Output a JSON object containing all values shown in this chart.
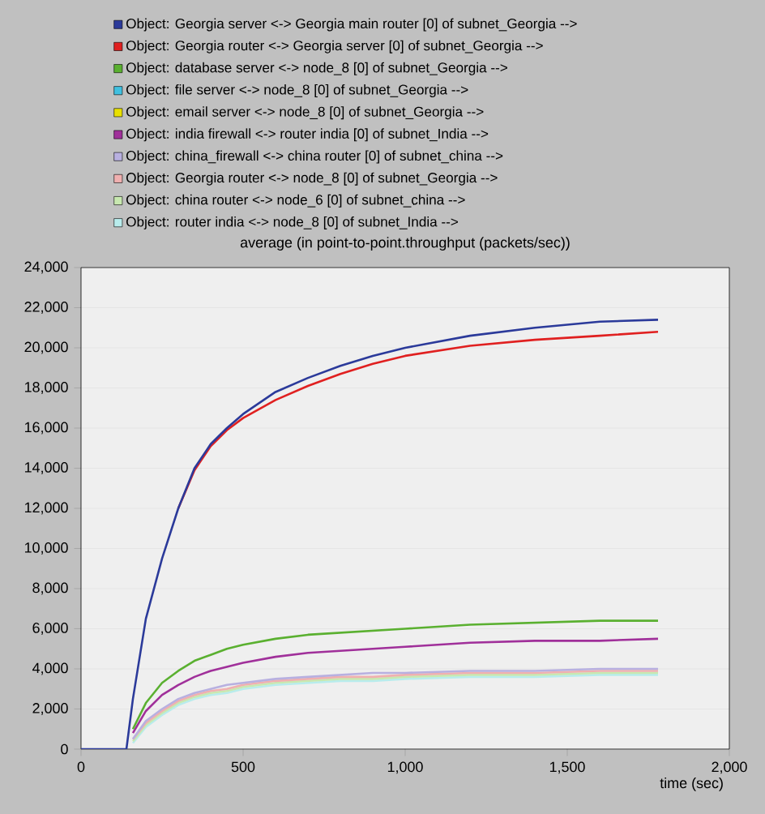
{
  "chart_data": {
    "type": "line",
    "title": "average (in point-to-point.throughput (packets/sec))",
    "xlabel": "time (sec)",
    "legend": "top",
    "grid": "y",
    "line_style": "solid",
    "marker": "none",
    "xlim": [
      0,
      2000
    ],
    "ylim": [
      0,
      24000
    ],
    "xticks": [
      0,
      500,
      {
        "value": 1000,
        "label": "1,000"
      },
      {
        "value": 1500,
        "label": "1,500"
      },
      {
        "value": 2000,
        "label": "2,000"
      }
    ],
    "yticks": [
      0,
      {
        "value": 2000,
        "label": "2,000"
      },
      {
        "value": 4000,
        "label": "4,000"
      },
      {
        "value": 6000,
        "label": "6,000"
      },
      {
        "value": 8000,
        "label": "8,000"
      },
      {
        "value": 10000,
        "label": "10,000"
      },
      {
        "value": 12000,
        "label": "12,000"
      },
      {
        "value": 14000,
        "label": "14,000"
      },
      {
        "value": 16000,
        "label": "16,000"
      },
      {
        "value": 18000,
        "label": "18,000"
      },
      {
        "value": 20000,
        "label": "20,000"
      },
      {
        "value": 22000,
        "label": "22,000"
      },
      {
        "value": 24000,
        "label": "24,000"
      }
    ],
    "x": [
      0,
      140,
      160,
      200,
      250,
      300,
      350,
      400,
      450,
      500,
      600,
      700,
      800,
      900,
      1000,
      1200,
      1400,
      1600,
      1780
    ],
    "series": [
      {
        "name": "Object: Georgia server <-> Georgia main router [0] of subnet_Georgia -->",
        "color": "#2b3a9a",
        "values": [
          0,
          0,
          2500,
          6500,
          9500,
          12000,
          14000,
          15200,
          16000,
          16700,
          17800,
          18500,
          19100,
          19600,
          20000,
          20600,
          21000,
          21300,
          21400
        ]
      },
      {
        "name": "Object: Georgia router <-> Georgia server [0] of subnet_Georgia -->",
        "color": "#e02020",
        "values": [
          null,
          null,
          null,
          null,
          null,
          12000,
          13900,
          15100,
          15900,
          16500,
          17400,
          18100,
          18700,
          19200,
          19600,
          20100,
          20400,
          20600,
          20800
        ]
      },
      {
        "name": "Object: database server <-> node_8 [0] of subnet_Georgia -->",
        "color": "#5ab030",
        "values": [
          null,
          null,
          1000,
          2300,
          3300,
          3900,
          4400,
          4700,
          5000,
          5200,
          5500,
          5700,
          5800,
          5900,
          6000,
          6200,
          6300,
          6400,
          6400
        ]
      },
      {
        "name": "Object: file server <-> node_8 [0] of subnet_Georgia -->",
        "color": "#40c0e0",
        "values": [
          null,
          null,
          null,
          null,
          null,
          null,
          null,
          null,
          null,
          null,
          null,
          null,
          null,
          null,
          null,
          null,
          null,
          null,
          null
        ]
      },
      {
        "name": "Object: email server <-> node_8 [0] of subnet_Georgia -->",
        "color": "#e8e000",
        "values": [
          null,
          null,
          null,
          null,
          null,
          null,
          null,
          null,
          null,
          null,
          null,
          null,
          null,
          null,
          null,
          null,
          null,
          null,
          null
        ]
      },
      {
        "name": "Object: india firewall <-> router india [0] of subnet_India -->",
        "color": "#a0309a",
        "values": [
          null,
          null,
          800,
          1900,
          2700,
          3200,
          3600,
          3900,
          4100,
          4300,
          4600,
          4800,
          4900,
          5000,
          5100,
          5300,
          5400,
          5400,
          5500
        ]
      },
      {
        "name": "Object: china_firewall <-> china router [0] of subnet_china -->",
        "color": "#b8b0e0",
        "values": [
          null,
          null,
          500,
          1400,
          2000,
          2500,
          2800,
          3000,
          3200,
          3300,
          3500,
          3600,
          3700,
          3800,
          3800,
          3900,
          3900,
          4000,
          4000
        ]
      },
      {
        "name": "Object: Georgia router <-> node_8 [0] of subnet_Georgia -->",
        "color": "#f0b0b0",
        "values": [
          null,
          null,
          500,
          1300,
          1900,
          2400,
          2700,
          2900,
          3000,
          3200,
          3400,
          3500,
          3600,
          3600,
          3700,
          3800,
          3800,
          3900,
          3900
        ]
      },
      {
        "name": "Object: china router <-> node_6 [0] of subnet_china -->",
        "color": "#c8e8b0",
        "values": [
          null,
          null,
          400,
          1200,
          1800,
          2300,
          2600,
          2800,
          2900,
          3100,
          3300,
          3400,
          3500,
          3500,
          3600,
          3700,
          3700,
          3800,
          3800
        ]
      },
      {
        "name": "Object: router india <-> node_8 [0] of subnet_India -->",
        "color": "#b8ecec",
        "values": [
          null,
          null,
          300,
          1100,
          1700,
          2200,
          2500,
          2700,
          2800,
          3000,
          3200,
          3300,
          3400,
          3400,
          3500,
          3600,
          3600,
          3700,
          3700
        ]
      }
    ]
  }
}
